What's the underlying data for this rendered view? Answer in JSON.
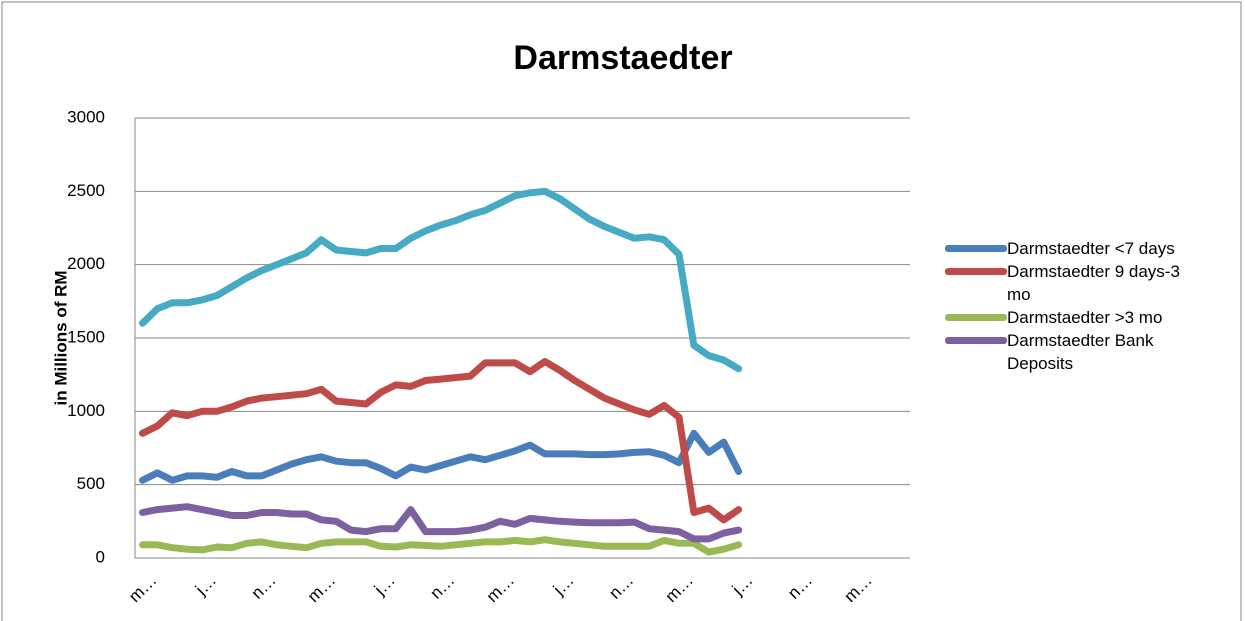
{
  "chart_data": {
    "type": "line",
    "title": "Darmstaedter",
    "y_label": "in Millions of RM",
    "categories": [
      "m…",
      null,
      null,
      null,
      "j…",
      null,
      null,
      null,
      "n…",
      null,
      null,
      null,
      "m…",
      null,
      null,
      null,
      "j…",
      null,
      null,
      null,
      "n…",
      null,
      null,
      null,
      "m…",
      null,
      null,
      null,
      "j…",
      null,
      null,
      null,
      "n…",
      null,
      null,
      null,
      "m…",
      null,
      null,
      null,
      "j…",
      null,
      null,
      null,
      "n…",
      null,
      null,
      null,
      "m…",
      null,
      null,
      null
    ],
    "series": [
      {
        "color": "#46aac5",
        "values": [
          1600,
          1700,
          1740,
          1740,
          1760,
          1790,
          1850,
          1910,
          1960,
          2000,
          2040,
          2080,
          2170,
          2100,
          2090,
          2080,
          2110,
          2110,
          2180,
          2230,
          2270,
          2300,
          2340,
          2370,
          2420,
          2470,
          2490,
          2500,
          2450,
          2380,
          2310,
          2260,
          2220,
          2180,
          2190,
          2170,
          2070,
          1450,
          1380,
          1350,
          1290,
          null,
          null,
          null,
          null,
          null,
          null,
          null,
          null,
          null,
          null,
          null
        ]
      },
      {
        "name": "Darmstaedter <7 days",
        "color": "#4a7ebb",
        "values": [
          530,
          580,
          530,
          560,
          560,
          550,
          590,
          560,
          560,
          600,
          640,
          670,
          690,
          660,
          650,
          650,
          610,
          560,
          620,
          600,
          630,
          660,
          690,
          670,
          700,
          730,
          770,
          710,
          710,
          710,
          705,
          705,
          710,
          720,
          725,
          700,
          650,
          850,
          720,
          790,
          590,
          null,
          null,
          null,
          null,
          null,
          null,
          null,
          null,
          null,
          null,
          null
        ]
      },
      {
        "name": "Darmstaedter 9 days-3 mo",
        "color": "#be4b48",
        "values": [
          850,
          900,
          990,
          970,
          1000,
          1000,
          1030,
          1070,
          1090,
          1100,
          1110,
          1120,
          1150,
          1070,
          1060,
          1050,
          1130,
          1180,
          1170,
          1210,
          1220,
          1230,
          1240,
          1330,
          1330,
          1330,
          1270,
          1340,
          1280,
          1210,
          1150,
          1090,
          1050,
          1010,
          980,
          1040,
          960,
          310,
          340,
          260,
          330,
          null,
          null,
          null,
          null,
          null,
          null,
          null,
          null,
          null,
          null,
          null
        ]
      },
      {
        "name": "Darmstaedter >3 mo",
        "color": "#98b954",
        "values": [
          90,
          90,
          70,
          60,
          55,
          75,
          70,
          100,
          110,
          90,
          80,
          70,
          100,
          110,
          110,
          110,
          80,
          75,
          90,
          85,
          80,
          90,
          100,
          110,
          110,
          120,
          110,
          125,
          110,
          100,
          90,
          80,
          80,
          80,
          80,
          120,
          100,
          100,
          40,
          60,
          90,
          null,
          null,
          null,
          null,
          null,
          null,
          null,
          null,
          null,
          null,
          null
        ]
      },
      {
        "name": "Darmstaedter Bank Deposits",
        "color": "#7d60a0",
        "values": [
          310,
          330,
          340,
          350,
          330,
          310,
          290,
          290,
          310,
          310,
          300,
          300,
          260,
          250,
          190,
          180,
          200,
          200,
          330,
          180,
          180,
          180,
          190,
          210,
          250,
          230,
          270,
          260,
          250,
          245,
          240,
          240,
          240,
          245,
          200,
          190,
          180,
          130,
          130,
          170,
          190,
          null,
          null,
          null,
          null,
          null,
          null,
          null,
          null,
          null,
          null,
          null
        ]
      }
    ],
    "ylim": [
      0,
      3000
    ],
    "yticks": [
      0,
      500,
      1000,
      1500,
      2000,
      2500,
      3000
    ],
    "grid": true,
    "legend": "right"
  }
}
